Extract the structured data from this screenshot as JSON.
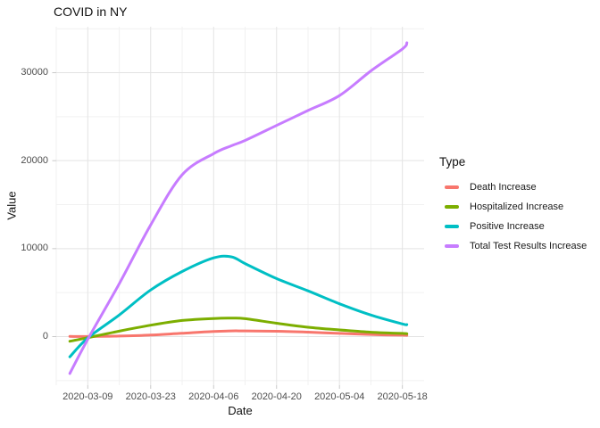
{
  "title": "COVID in NY",
  "legend": {
    "title": "Type",
    "position": "right"
  },
  "chart_data": {
    "type": "line",
    "title": "COVID in NY",
    "xlabel": "Date",
    "ylabel": "Value",
    "x_tick_labels": [
      "2020-03-09",
      "2020-03-23",
      "2020-04-06",
      "2020-04-20",
      "2020-05-04",
      "2020-05-18"
    ],
    "x_tick_days": [
      0,
      14,
      28,
      42,
      56,
      70
    ],
    "x_minor_days": [
      -7,
      7,
      21,
      35,
      49,
      63
    ],
    "y_ticks": [
      0,
      10000,
      20000,
      30000
    ],
    "y_minor_ticks": [
      -5000,
      5000,
      15000,
      25000,
      35000
    ],
    "ylim": [
      -5500,
      35200
    ],
    "xlim_days": [
      -7,
      74.8
    ],
    "grid": true,
    "legend_title": "Type",
    "legend_position": "right",
    "sample_days": [
      -4,
      0,
      7,
      14,
      21,
      28,
      32,
      35,
      42,
      49,
      56,
      63,
      70,
      71
    ],
    "series": [
      {
        "name": "Death Increase",
        "color": "#F8766D",
        "values": [
          20,
          10,
          60,
          180,
          380,
          580,
          650,
          645,
          610,
          510,
          360,
          240,
          160,
          140
        ]
      },
      {
        "name": "Hospitalized Increase",
        "color": "#7CAE00",
        "values": [
          -530,
          -120,
          620,
          1300,
          1830,
          2060,
          2100,
          2040,
          1520,
          1060,
          760,
          500,
          360,
          330
        ]
      },
      {
        "name": "Positive Increase",
        "color": "#00BFC4",
        "values": [
          -2300,
          -150,
          2450,
          5300,
          7400,
          8950,
          9060,
          8300,
          6600,
          5200,
          3730,
          2450,
          1440,
          1370
        ]
      },
      {
        "name": "Total Test Results Increase",
        "color": "#C77CFF",
        "values": [
          -4200,
          -300,
          6000,
          12700,
          18400,
          20800,
          21700,
          22300,
          24000,
          25700,
          27400,
          30200,
          32700,
          33400
        ]
      }
    ]
  }
}
